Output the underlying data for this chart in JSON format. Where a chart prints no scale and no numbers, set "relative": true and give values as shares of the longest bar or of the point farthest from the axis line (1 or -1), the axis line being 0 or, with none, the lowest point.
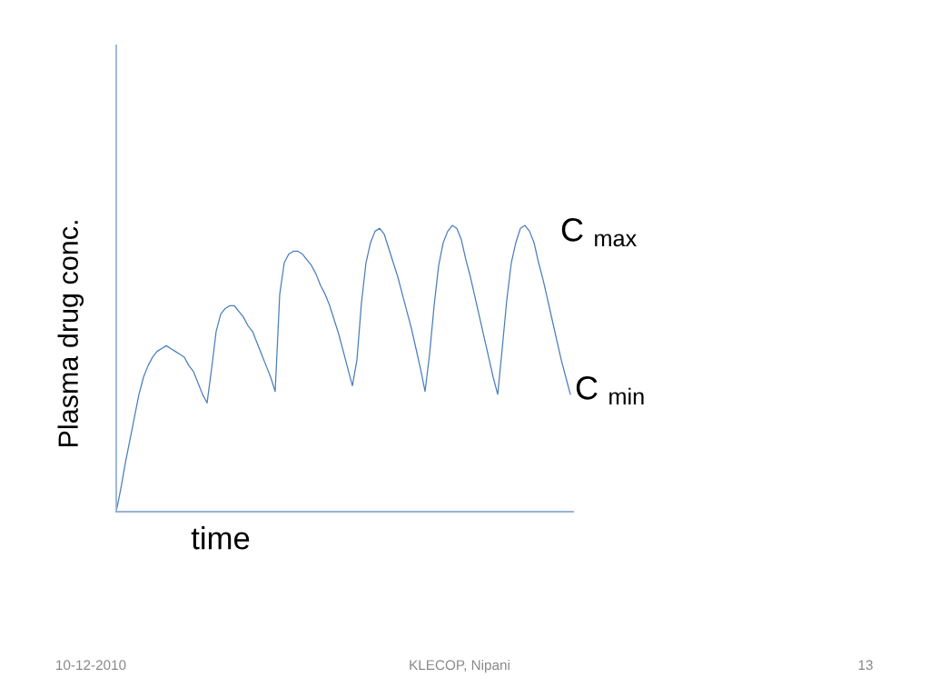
{
  "chart_data": {
    "type": "line",
    "xlabel": "time",
    "ylabel": "Plasma drug conc.",
    "annotations": [
      "C $_{max}$",
      "C $_{min}$",
      "10-12-2010",
      "KLECOP, Nipani",
      "13"
    ],
    "categories": [
      null,
      null,
      null,
      null,
      null,
      null,
      null,
      null,
      null,
      null,
      null,
      null,
      null,
      null,
      null,
      null,
      null,
      null,
      null,
      null,
      null,
      null,
      null,
      null,
      null,
      null,
      null,
      null,
      null,
      null,
      null,
      null,
      null,
      null,
      null,
      null,
      null,
      null,
      null,
      null,
      null,
      null,
      null,
      null,
      null,
      null,
      null,
      null,
      null,
      null,
      null,
      null,
      null,
      null,
      null,
      null,
      null,
      null,
      null,
      null,
      null,
      null,
      null,
      null,
      null,
      null,
      null,
      null,
      null,
      null,
      null,
      null,
      null,
      null,
      null,
      null,
      null,
      null,
      null,
      null,
      null,
      null,
      null,
      null,
      null,
      null,
      null,
      null,
      null,
      null,
      null,
      null,
      null,
      null,
      null,
      null,
      null,
      null,
      null,
      null,
      null
    ],
    "series": [
      {
        "color": "#4a7ebb",
        "values": [
          0.0,
          0.08,
          0.17,
          0.25,
          0.33,
          0.41,
          0.47,
          0.51,
          0.54,
          0.56,
          0.57,
          0.58,
          0.57,
          0.56,
          0.55,
          0.54,
          0.51,
          0.49,
          0.45,
          0.41,
          0.38,
          0.5,
          0.63,
          0.69,
          0.71,
          0.72,
          0.72,
          0.7,
          0.68,
          0.65,
          0.63,
          0.59,
          0.55,
          0.51,
          0.47,
          0.42,
          0.76,
          0.87,
          0.9,
          0.91,
          0.91,
          0.9,
          0.88,
          0.86,
          0.83,
          0.79,
          0.76,
          0.72,
          0.67,
          0.62,
          0.56,
          0.5,
          0.44,
          0.53,
          0.73,
          0.87,
          0.94,
          0.98,
          0.99,
          0.97,
          0.92,
          0.87,
          0.82,
          0.76,
          0.7,
          0.64,
          0.57,
          0.5,
          0.42,
          0.55,
          0.72,
          0.86,
          0.94,
          0.98,
          1.0,
          0.99,
          0.95,
          0.88,
          0.82,
          0.75,
          0.68,
          0.61,
          0.54,
          0.47,
          0.41,
          0.57,
          0.74,
          0.87,
          0.94,
          0.99,
          1.0,
          0.98,
          0.94,
          0.87,
          0.81,
          0.74,
          0.67,
          0.6,
          0.53,
          0.47,
          0.41
        ]
      }
    ],
    "relative": true,
    "line_style": "solid"
  }
}
